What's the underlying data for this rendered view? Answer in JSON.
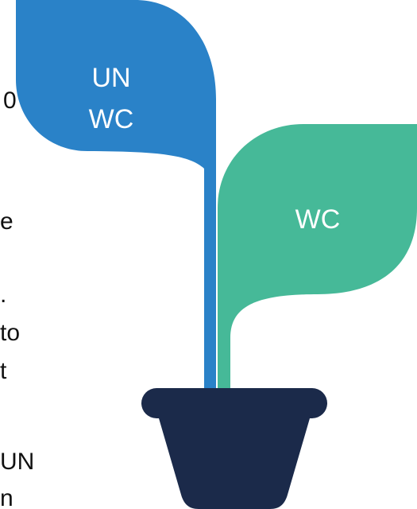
{
  "left_text": [
    "0",
    "e",
    ".",
    "to",
    "t",
    "UN",
    "n"
  ],
  "leaves": [
    {
      "label": [
        "UN",
        "WC"
      ]
    },
    {
      "label": [
        "WC"
      ]
    }
  ]
}
